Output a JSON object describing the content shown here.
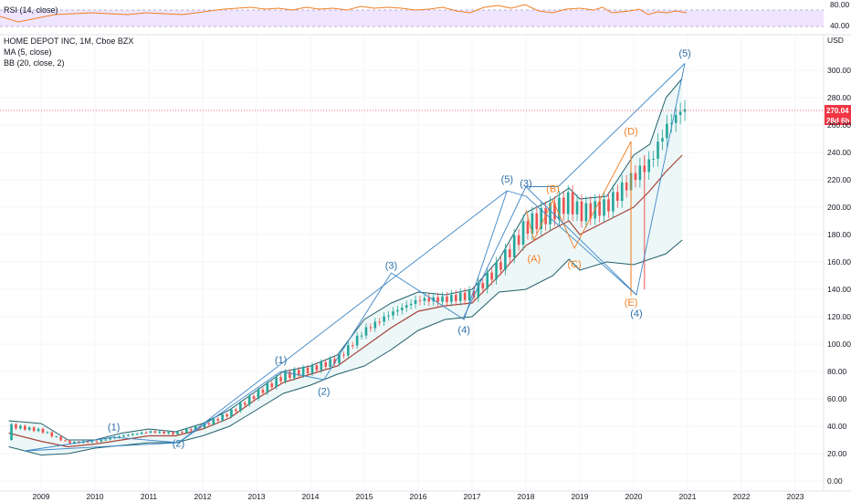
{
  "rsi_panel": {
    "label": "RSI (14, close)",
    "levels": [
      "80.00",
      "40.00"
    ],
    "colors": {
      "line": "#f27f23",
      "band": "#e9dcff"
    }
  },
  "header": {
    "title": "HOME DEPOT INC, 1M, Cboe BZX",
    "ma_label": "MA (5, close)",
    "bb_label": "BB (20, close, 2)"
  },
  "price_axis": {
    "currency": "USD",
    "current_price": "270.04",
    "countdown": "28d 6h",
    "badge_color": "#f23645",
    "ticks": [
      "300.00",
      "280.00",
      "260.00",
      "240.00",
      "220.00",
      "200.00",
      "180.00",
      "160.00",
      "140.00",
      "120.00",
      "100.00",
      "80.00",
      "60.00",
      "40.00",
      "20.00",
      "0.00"
    ]
  },
  "time_axis": {
    "ticks": [
      "2009",
      "2010",
      "2011",
      "2012",
      "2013",
      "2014",
      "2015",
      "2016",
      "2017",
      "2018",
      "2019",
      "2020",
      "2021",
      "2022",
      "2023"
    ]
  },
  "chart_data": {
    "type": "line",
    "ylim": [
      0,
      310
    ],
    "x_range": [
      2008.4,
      2023.8
    ],
    "series": [
      {
        "name": "BB (20, close, 2)",
        "x": [
          2008.4,
          2009,
          2009.5,
          2010,
          2010.5,
          2011,
          2011.5,
          2012,
          2012.5,
          2013,
          2013.5,
          2014,
          2014.5,
          2015,
          2015.5,
          2016,
          2016.5,
          2017,
          2017.5,
          2018,
          2018.5,
          2018.8,
          2019,
          2019.5,
          2020,
          2020.3,
          2020.6,
          2020.9
        ],
        "upper": [
          44,
          42,
          30,
          30,
          35,
          38,
          36,
          42,
          52,
          66,
          80,
          84,
          92,
          118,
          130,
          138,
          136,
          140,
          162,
          196,
          206,
          214,
          206,
          208,
          238,
          246,
          280,
          294
        ],
        "middle": [
          35,
          29,
          25,
          27,
          30,
          33,
          33,
          38,
          46,
          60,
          72,
          78,
          84,
          98,
          112,
          124,
          128,
          130,
          150,
          172,
          184,
          190,
          180,
          190,
          200,
          212,
          226,
          238
        ],
        "lower": [
          25,
          19,
          20,
          24,
          26,
          28,
          28,
          33,
          40,
          52,
          64,
          70,
          78,
          84,
          96,
          110,
          118,
          120,
          138,
          140,
          150,
          162,
          154,
          160,
          158,
          162,
          166,
          176
        ]
      }
    ],
    "annotations": [
      {
        "text": "(1)",
        "color": "blue",
        "x": 2010.35,
        "y": 37
      },
      {
        "text": "(2)",
        "color": "blue",
        "x": 2011.55,
        "y": 25
      },
      {
        "text": "(1)",
        "color": "blue",
        "x": 2013.45,
        "y": 86
      },
      {
        "text": "(2)",
        "color": "blue",
        "x": 2014.25,
        "y": 63
      },
      {
        "text": "(3)",
        "color": "blue",
        "x": 2015.5,
        "y": 155
      },
      {
        "text": "(4)",
        "color": "blue",
        "x": 2016.85,
        "y": 108
      },
      {
        "text": "(5)",
        "color": "blue",
        "x": 2017.65,
        "y": 218
      },
      {
        "text": "(3)",
        "color": "blue",
        "x": 2018.0,
        "y": 215
      },
      {
        "text": "(B)",
        "color": "orange",
        "x": 2018.5,
        "y": 211
      },
      {
        "text": "(A)",
        "color": "orange",
        "x": 2018.15,
        "y": 160
      },
      {
        "text": "(C)",
        "color": "orange",
        "x": 2018.9,
        "y": 156
      },
      {
        "text": "(D)",
        "color": "orange",
        "x": 2019.95,
        "y": 253
      },
      {
        "text": "(E)",
        "color": "orange",
        "x": 2019.95,
        "y": 128
      },
      {
        "text": "(4)",
        "color": "blue",
        "x": 2020.05,
        "y": 120
      },
      {
        "text": "(5)",
        "color": "blue",
        "x": 2020.95,
        "y": 310
      }
    ]
  }
}
